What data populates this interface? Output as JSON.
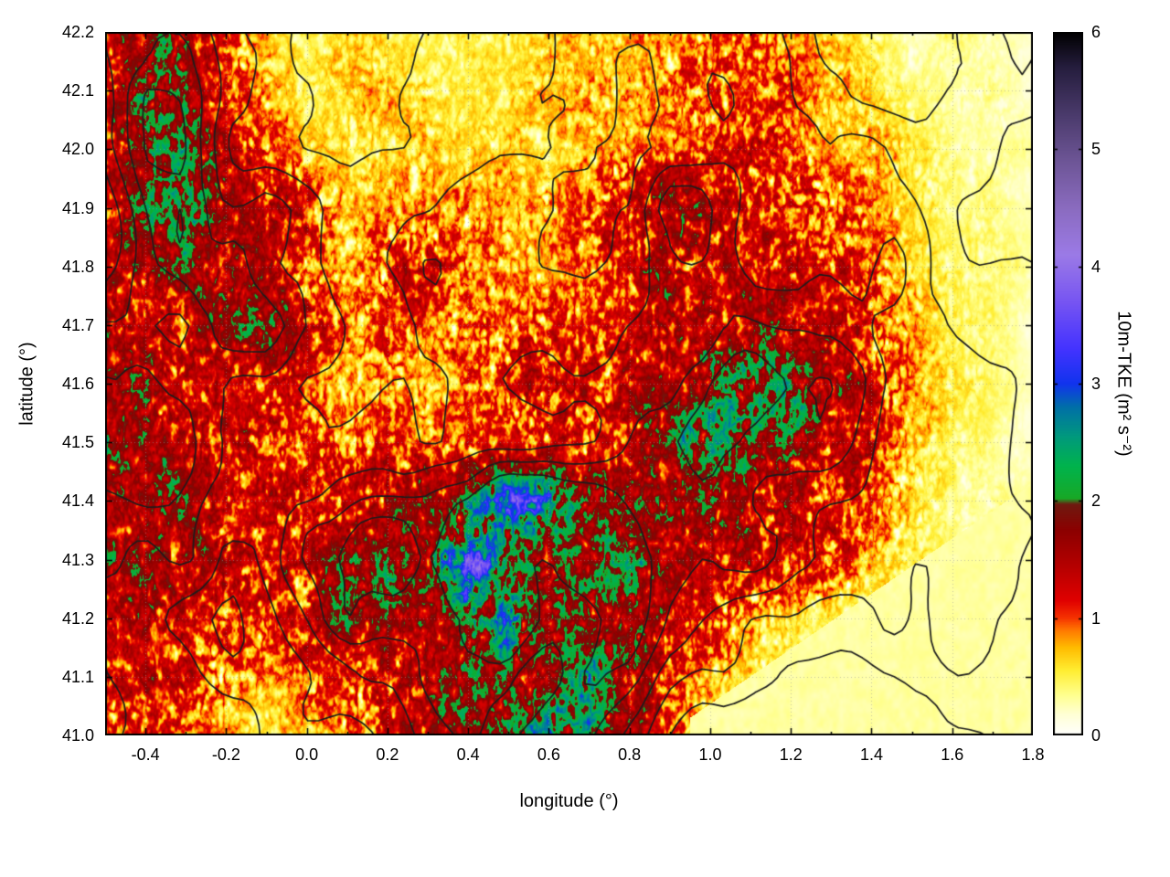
{
  "figure": {
    "background": "#ffffff",
    "frame_color": "#000000",
    "grid_color": "#999999",
    "contour_color": "#1c1c1c",
    "text_color": "#000000"
  },
  "chart_data": {
    "type": "heatmap",
    "title": "",
    "xlabel": "longitude (°)",
    "ylabel": "latitude (°)",
    "colorbar_label": "10m-TKE (m² s⁻²)",
    "x_range": [
      -0.5,
      1.8
    ],
    "y_range": [
      41.0,
      42.2
    ],
    "cb_range": [
      0,
      6
    ],
    "grid": true,
    "legend_position": "colorbar-right",
    "x_ticks": [
      {
        "v": -0.4,
        "label": "-0.4"
      },
      {
        "v": -0.2,
        "label": "-0.2"
      },
      {
        "v": 0.0,
        "label": "0.0"
      },
      {
        "v": 0.2,
        "label": "0.2"
      },
      {
        "v": 0.4,
        "label": "0.4"
      },
      {
        "v": 0.6,
        "label": "0.6"
      },
      {
        "v": 0.8,
        "label": "0.8"
      },
      {
        "v": 1.0,
        "label": "1.0"
      },
      {
        "v": 1.2,
        "label": "1.2"
      },
      {
        "v": 1.4,
        "label": "1.4"
      },
      {
        "v": 1.6,
        "label": "1.6"
      },
      {
        "v": 1.8,
        "label": "1.8"
      }
    ],
    "x_minor_step": 0.1,
    "y_ticks": [
      {
        "v": 41.0,
        "label": "41.0"
      },
      {
        "v": 41.1,
        "label": "41.1"
      },
      {
        "v": 41.2,
        "label": "41.2"
      },
      {
        "v": 41.3,
        "label": "41.3"
      },
      {
        "v": 41.4,
        "label": "41.4"
      },
      {
        "v": 41.5,
        "label": "41.5"
      },
      {
        "v": 41.6,
        "label": "41.6"
      },
      {
        "v": 41.7,
        "label": "41.7"
      },
      {
        "v": 41.8,
        "label": "41.8"
      },
      {
        "v": 41.9,
        "label": "41.9"
      },
      {
        "v": 42.0,
        "label": "42.0"
      },
      {
        "v": 42.1,
        "label": "42.1"
      },
      {
        "v": 42.2,
        "label": "42.2"
      }
    ],
    "cb_ticks": [
      {
        "v": 0,
        "label": "0"
      },
      {
        "v": 1,
        "label": "1"
      },
      {
        "v": 2,
        "label": "2"
      },
      {
        "v": 3,
        "label": "3"
      },
      {
        "v": 4,
        "label": "4"
      },
      {
        "v": 5,
        "label": "5"
      },
      {
        "v": 6,
        "label": "6"
      }
    ],
    "palette_stops": [
      [
        0.0,
        "#ffffff"
      ],
      [
        0.18,
        "#ffffd5"
      ],
      [
        0.35,
        "#ffff8c"
      ],
      [
        0.55,
        "#ffee33"
      ],
      [
        0.75,
        "#ffbb00"
      ],
      [
        0.9,
        "#ff7700"
      ],
      [
        1.0,
        "#f63300"
      ],
      [
        1.15,
        "#e00000"
      ],
      [
        1.45,
        "#b40000"
      ],
      [
        1.75,
        "#8c0000"
      ],
      [
        1.97,
        "#6e1a10"
      ],
      [
        2.02,
        "#18a826"
      ],
      [
        2.3,
        "#00b34d"
      ],
      [
        2.55,
        "#00997d"
      ],
      [
        2.8,
        "#006fa8"
      ],
      [
        3.0,
        "#1133ee"
      ],
      [
        3.3,
        "#4433ff"
      ],
      [
        3.7,
        "#7755f2"
      ],
      [
        4.1,
        "#9b7ae6"
      ],
      [
        4.5,
        "#8a6bbf"
      ],
      [
        4.9,
        "#6d5596"
      ],
      [
        5.3,
        "#4a3a6b"
      ],
      [
        5.7,
        "#251d3d"
      ],
      [
        6.0,
        "#000000"
      ]
    ],
    "contour_levels": [
      0.75,
      1.0,
      1.25,
      1.5,
      1.75
    ],
    "sea_region": {
      "lon_min": 0.95,
      "boundary": [
        [
          0.95,
          41.03
        ],
        [
          1.8,
          41.43
        ]
      ],
      "value": 0.3
    },
    "grid_values": {
      "lon_start": -0.5,
      "lon_step": 0.1,
      "ncols": 24,
      "lat_start": 42.2,
      "lat_step": -0.1,
      "nrows": 13,
      "rows": [
        [
          0.7,
          1.3,
          1.4,
          0.7,
          0.45,
          0.35,
          0.45,
          0.4,
          0.35,
          0.4,
          0.35,
          0.5,
          0.45,
          0.55,
          0.5,
          0.6,
          0.7,
          0.5,
          0.45,
          0.35,
          0.25,
          0.3,
          0.25,
          0.2
        ],
        [
          0.9,
          1.7,
          1.6,
          0.8,
          0.5,
          0.4,
          0.45,
          0.5,
          0.4,
          0.35,
          0.4,
          0.5,
          0.55,
          0.5,
          0.65,
          0.7,
          0.6,
          0.65,
          0.5,
          0.45,
          0.3,
          0.25,
          0.3,
          0.2
        ],
        [
          0.8,
          1.8,
          1.6,
          1.0,
          0.6,
          0.5,
          0.4,
          0.45,
          0.5,
          0.4,
          0.45,
          0.4,
          0.5,
          0.55,
          0.5,
          0.65,
          0.85,
          0.6,
          0.5,
          0.55,
          0.4,
          0.3,
          0.25,
          0.25
        ],
        [
          0.8,
          1.5,
          1.8,
          1.2,
          1.3,
          0.8,
          0.5,
          0.55,
          0.5,
          0.6,
          0.5,
          0.55,
          0.65,
          0.9,
          1.7,
          1.1,
          0.8,
          0.85,
          0.65,
          0.55,
          0.4,
          0.3,
          0.3,
          0.2
        ],
        [
          1.0,
          1.2,
          1.5,
          1.5,
          1.2,
          0.6,
          0.5,
          0.75,
          0.95,
          0.6,
          0.5,
          0.5,
          0.6,
          1.1,
          1.3,
          1.0,
          0.85,
          0.95,
          0.75,
          0.65,
          0.45,
          0.35,
          0.3,
          0.25
        ],
        [
          1.1,
          1.0,
          0.8,
          1.3,
          1.6,
          1.0,
          0.6,
          0.65,
          0.6,
          0.65,
          0.6,
          0.75,
          0.6,
          0.75,
          0.95,
          1.1,
          1.3,
          1.1,
          1.0,
          0.75,
          0.5,
          0.35,
          0.3,
          0.2
        ],
        [
          1.4,
          1.2,
          1.0,
          0.8,
          0.7,
          0.6,
          0.5,
          0.6,
          0.5,
          0.6,
          0.75,
          1.0,
          0.8,
          0.95,
          1.25,
          1.7,
          2.1,
          1.7,
          1.4,
          0.85,
          0.55,
          0.4,
          0.3,
          0.2
        ],
        [
          1.6,
          1.4,
          1.3,
          1.0,
          0.8,
          0.7,
          0.6,
          0.65,
          0.6,
          0.65,
          0.6,
          0.75,
          0.85,
          1.15,
          1.55,
          1.95,
          1.75,
          1.5,
          1.1,
          0.75,
          0.5,
          0.35,
          0.28,
          0.2
        ],
        [
          1.3,
          1.5,
          1.2,
          1.0,
          0.8,
          0.8,
          0.95,
          1.15,
          1.35,
          1.75,
          2.4,
          2.15,
          1.75,
          1.45,
          1.25,
          1.35,
          1.15,
          0.95,
          0.85,
          0.65,
          0.45,
          0.3,
          0.28,
          0.25
        ],
        [
          1.4,
          1.2,
          1.35,
          1.0,
          0.9,
          1.15,
          1.55,
          1.75,
          1.55,
          2.7,
          1.75,
          1.35,
          1.55,
          1.75,
          1.15,
          0.95,
          1.1,
          0.85,
          0.75,
          0.55,
          0.38,
          0.3,
          0.28,
          0.28
        ],
        [
          1.0,
          1.15,
          0.8,
          0.7,
          0.8,
          1.0,
          1.55,
          1.35,
          1.15,
          1.75,
          2.3,
          1.55,
          1.35,
          1.55,
          0.95,
          0.75,
          0.55,
          0.45,
          0.38,
          0.33,
          0.3,
          0.3,
          0.3,
          0.3
        ],
        [
          0.8,
          1.0,
          0.9,
          0.6,
          0.5,
          0.6,
          0.8,
          1.0,
          1.35,
          1.75,
          1.45,
          1.25,
          1.95,
          1.35,
          0.75,
          0.55,
          0.42,
          0.35,
          0.32,
          0.3,
          0.3,
          0.3,
          0.3,
          0.3
        ],
        [
          0.6,
          0.7,
          0.6,
          0.5,
          0.4,
          0.5,
          0.6,
          0.8,
          1.0,
          1.35,
          1.55,
          2.1,
          1.75,
          1.15,
          0.65,
          0.45,
          0.38,
          0.33,
          0.3,
          0.3,
          0.3,
          0.3,
          0.3,
          0.3
        ]
      ]
    }
  }
}
